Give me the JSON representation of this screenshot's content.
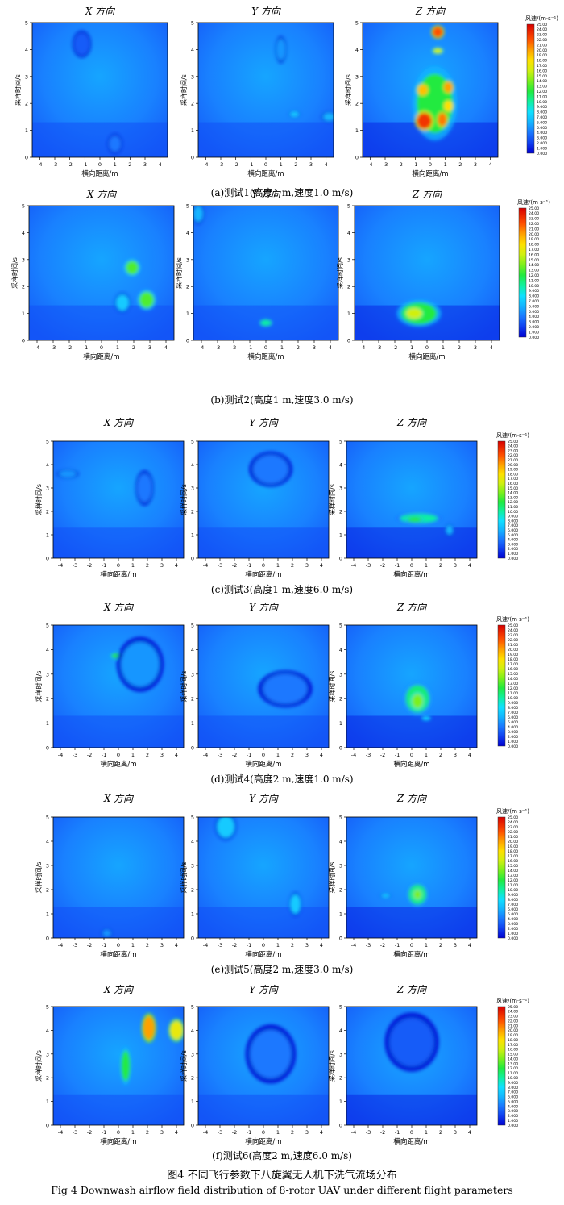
{
  "labels": {
    "x_dir": "X 方向",
    "y_dir": "Y 方向",
    "z_dir": "Z 方向",
    "ylabel": "采样时间/s",
    "xlabel": "横向距离/m",
    "legend_title": "风速/(m·s⁻¹)"
  },
  "legend_ticks": [
    "25.00",
    "24.00",
    "23.00",
    "22.00",
    "21.00",
    "20.00",
    "19.00",
    "18.00",
    "17.00",
    "16.00",
    "15.00",
    "14.00",
    "13.00",
    "12.00",
    "11.00",
    "10.00",
    "9.000",
    "8.000",
    "7.000",
    "6.000",
    "5.000",
    "4.000",
    "3.000",
    "2.000",
    "1.000",
    "0.000"
  ],
  "colors": {
    "low": "#0000d8",
    "mid_low": "#3a7bff",
    "mid": "#1ec8ff",
    "green": "#1fe84a",
    "yellow": "#f0f000",
    "red": "#e00000"
  },
  "chart_data": [
    {
      "id": "a",
      "type": "heatmap",
      "caption": "(a)测试1(高度1 m,速度1.0 m/s)",
      "xlim": [
        -4.5,
        4.5
      ],
      "ylim": [
        0,
        5
      ],
      "xticks": [
        "-4",
        "-3",
        "-2",
        "-1",
        "0",
        "1",
        "2",
        "3",
        "4"
      ],
      "yticks": [
        "0",
        "1",
        "2",
        "3",
        "4",
        "5"
      ],
      "colorbar": {
        "min": 0,
        "max": 25
      },
      "hotspots": [
        {
          "panel": "X",
          "x": 1.0,
          "y": 0.5,
          "rx": 0.4,
          "ry": 0.3,
          "v": 4
        },
        {
          "panel": "X",
          "x": -1.2,
          "y": 4.2,
          "rx": 0.5,
          "ry": 0.4,
          "v": 3
        },
        {
          "panel": "Y",
          "x": 1.0,
          "y": 4.0,
          "rx": 0.3,
          "ry": 0.4,
          "v": 5
        },
        {
          "panel": "Y",
          "x": 1.9,
          "y": 1.6,
          "rx": 0.3,
          "ry": 0.1,
          "v": 7
        },
        {
          "panel": "Y",
          "x": 4.2,
          "y": 1.5,
          "rx": 0.4,
          "ry": 0.15,
          "v": 6
        },
        {
          "panel": "Z",
          "x": 0.5,
          "y": 4.65,
          "rx": 0.35,
          "ry": 0.2,
          "v": 22
        },
        {
          "panel": "Z",
          "x": 0.5,
          "y": 3.95,
          "rx": 0.3,
          "ry": 0.1,
          "v": 16
        },
        {
          "panel": "Z",
          "x": 0.3,
          "y": 2.0,
          "rx": 1.2,
          "ry": 1.1,
          "v": 12
        },
        {
          "panel": "Z",
          "x": -0.4,
          "y": 1.35,
          "rx": 0.5,
          "ry": 0.3,
          "v": 23
        },
        {
          "panel": "Z",
          "x": 0.8,
          "y": 1.4,
          "rx": 0.3,
          "ry": 0.25,
          "v": 21
        },
        {
          "panel": "Z",
          "x": 1.2,
          "y": 2.6,
          "rx": 0.3,
          "ry": 0.2,
          "v": 20
        },
        {
          "panel": "Z",
          "x": -0.5,
          "y": 2.5,
          "rx": 0.35,
          "ry": 0.2,
          "v": 19
        },
        {
          "panel": "Z",
          "x": 1.2,
          "y": 1.9,
          "rx": 0.3,
          "ry": 0.2,
          "v": 18
        }
      ]
    },
    {
      "id": "b",
      "type": "heatmap",
      "caption": "(b)测试2(高度1 m,速度3.0 m/s)",
      "xlim": [
        -4.5,
        4.5
      ],
      "ylim": [
        0,
        5
      ],
      "xticks": [
        "-4",
        "-3",
        "-2",
        "-1",
        "0",
        "1",
        "2",
        "3",
        "4"
      ],
      "yticks": [
        "0",
        "1",
        "2",
        "3",
        "4",
        "5"
      ],
      "colorbar": {
        "min": 0,
        "max": 25
      },
      "hotspots": [
        {
          "panel": "X",
          "x": 1.9,
          "y": 2.7,
          "rx": 0.4,
          "ry": 0.25,
          "v": 13
        },
        {
          "panel": "X",
          "x": 2.8,
          "y": 1.5,
          "rx": 0.45,
          "ry": 0.3,
          "v": 13
        },
        {
          "panel": "X",
          "x": 1.3,
          "y": 1.4,
          "rx": 0.4,
          "ry": 0.3,
          "v": 7
        },
        {
          "panel": "Y",
          "x": 0.0,
          "y": 0.65,
          "rx": 0.35,
          "ry": 0.12,
          "v": 10
        },
        {
          "panel": "Y",
          "x": -4.2,
          "y": 4.7,
          "rx": 0.3,
          "ry": 0.3,
          "v": 6
        },
        {
          "panel": "Z",
          "x": -0.5,
          "y": 1.0,
          "rx": 1.1,
          "ry": 0.4,
          "v": 12
        },
        {
          "panel": "Z",
          "x": -0.8,
          "y": 1.0,
          "rx": 0.5,
          "ry": 0.2,
          "v": 16
        }
      ]
    },
    {
      "id": "c",
      "type": "heatmap",
      "caption": "(c)测试3(高度1 m,速度6.0 m/s)",
      "xlim": [
        -4.5,
        4.5
      ],
      "ylim": [
        0,
        5
      ],
      "xticks": [
        "-4",
        "-3",
        "-2",
        "-1",
        "0",
        "1",
        "2",
        "3",
        "4"
      ],
      "yticks": [
        "0",
        "1",
        "2",
        "3",
        "4",
        "5"
      ],
      "colorbar": {
        "min": 0,
        "max": 25
      },
      "hotspots": [
        {
          "panel": "X",
          "x": -3.5,
          "y": 3.6,
          "rx": 0.6,
          "ry": 0.15,
          "v": 5
        },
        {
          "panel": "X",
          "x": 1.8,
          "y": 3.0,
          "rx": 0.5,
          "ry": 0.6,
          "v": 4
        },
        {
          "panel": "Y",
          "x": 0.5,
          "y": 3.8,
          "rx": 1.2,
          "ry": 0.6,
          "v": 4
        },
        {
          "panel": "Z",
          "x": 0.5,
          "y": 1.7,
          "rx": 1.3,
          "ry": 0.2,
          "v": 10
        },
        {
          "panel": "Z",
          "x": 0.2,
          "y": 1.65,
          "rx": 0.5,
          "ry": 0.12,
          "v": 12
        },
        {
          "panel": "Z",
          "x": 2.6,
          "y": 1.2,
          "rx": 0.25,
          "ry": 0.2,
          "v": 6
        }
      ]
    },
    {
      "id": "d",
      "type": "heatmap",
      "caption": "(d)测试4(高度2 m,速度1.0 m/s)",
      "xlim": [
        -4.5,
        4.5
      ],
      "ylim": [
        0,
        5
      ],
      "xticks": [
        "-4",
        "-3",
        "-2",
        "-1",
        "0",
        "1",
        "2",
        "3",
        "4"
      ],
      "yticks": [
        "0",
        "1",
        "2",
        "3",
        "4",
        "5"
      ],
      "colorbar": {
        "min": 0,
        "max": 25
      },
      "hotspots": [
        {
          "panel": "X",
          "x": -0.1,
          "y": 3.75,
          "rx": 0.4,
          "ry": 0.1,
          "v": 12
        },
        {
          "panel": "X",
          "x": 1.5,
          "y": 3.4,
          "rx": 1.3,
          "ry": 0.9,
          "v": 5
        },
        {
          "panel": "Y",
          "x": 1.5,
          "y": 2.4,
          "rx": 1.5,
          "ry": 0.6,
          "v": 4
        },
        {
          "panel": "Z",
          "x": 0.4,
          "y": 2.0,
          "rx": 0.8,
          "ry": 0.55,
          "v": 11
        },
        {
          "panel": "Z",
          "x": 0.4,
          "y": 1.9,
          "rx": 0.4,
          "ry": 0.3,
          "v": 14
        },
        {
          "panel": "Z",
          "x": 1.0,
          "y": 1.2,
          "rx": 0.3,
          "ry": 0.08,
          "v": 8
        }
      ]
    },
    {
      "id": "e",
      "type": "heatmap",
      "caption": "(e)测试5(高度2 m,速度3.0 m/s)",
      "xlim": [
        -4.5,
        4.5
      ],
      "ylim": [
        0,
        5
      ],
      "xticks": [
        "-4",
        "-3",
        "-2",
        "-1",
        "0",
        "1",
        "2",
        "3",
        "4"
      ],
      "yticks": [
        "0",
        "1",
        "2",
        "3",
        "4",
        "5"
      ],
      "colorbar": {
        "min": 0,
        "max": 25
      },
      "hotspots": [
        {
          "panel": "X",
          "x": -0.8,
          "y": 0.2,
          "rx": 0.3,
          "ry": 0.15,
          "v": 5
        },
        {
          "panel": "Y",
          "x": -2.6,
          "y": 4.6,
          "rx": 0.6,
          "ry": 0.45,
          "v": 7
        },
        {
          "panel": "Y",
          "x": 2.2,
          "y": 1.4,
          "rx": 0.35,
          "ry": 0.4,
          "v": 7
        },
        {
          "panel": "Z",
          "x": 0.4,
          "y": 1.8,
          "rx": 0.6,
          "ry": 0.4,
          "v": 11
        },
        {
          "panel": "Z",
          "x": 0.4,
          "y": 1.8,
          "rx": 0.3,
          "ry": 0.2,
          "v": 14
        },
        {
          "panel": "Z",
          "x": -1.8,
          "y": 1.75,
          "rx": 0.3,
          "ry": 0.08,
          "v": 7
        }
      ]
    },
    {
      "id": "f",
      "type": "heatmap",
      "caption": "(f)测试6(高度2 m,速度6.0 m/s)",
      "xlim": [
        -4.5,
        4.5
      ],
      "ylim": [
        0,
        5
      ],
      "xticks": [
        "-4",
        "-3",
        "-2",
        "-1",
        "0",
        "1",
        "2",
        "3",
        "4"
      ],
      "yticks": [
        "0",
        "1",
        "2",
        "3",
        "4",
        "5"
      ],
      "colorbar": {
        "min": 0,
        "max": 25
      },
      "hotspots": [
        {
          "panel": "X",
          "x": 0.5,
          "y": 2.5,
          "rx": 0.3,
          "ry": 0.65,
          "v": 12
        },
        {
          "panel": "X",
          "x": 2.1,
          "y": 4.1,
          "rx": 0.4,
          "ry": 0.5,
          "v": 20
        },
        {
          "panel": "X",
          "x": 4.0,
          "y": 4.0,
          "rx": 0.45,
          "ry": 0.4,
          "v": 17
        },
        {
          "panel": "Y",
          "x": 0.5,
          "y": 3.0,
          "rx": 1.4,
          "ry": 1.0,
          "v": 4
        },
        {
          "panel": "Z",
          "x": 0.0,
          "y": 3.5,
          "rx": 1.5,
          "ry": 1.0,
          "v": 3
        }
      ]
    }
  ],
  "figure_caption_cn": "图4  不同飞行参数下八旋翼无人机下洗气流场分布",
  "figure_caption_en": "Fig 4  Downwash airflow field distribution of 8-rotor UAV under different flight parameters"
}
